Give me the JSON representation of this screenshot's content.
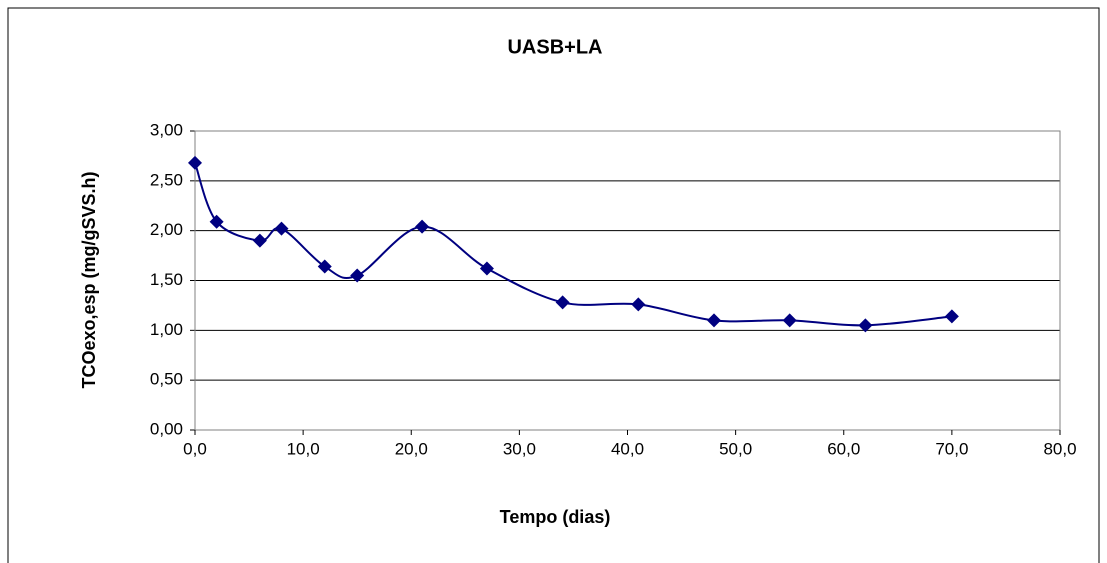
{
  "chart_data": {
    "type": "line",
    "title": "UASB+LA",
    "x_label": "Tempo (dias)",
    "y_label": "TCOexo,esp (mg/gSVS.h)",
    "x": [
      0,
      2,
      6,
      8,
      12,
      15,
      21,
      27,
      34,
      41,
      48,
      55,
      62,
      70
    ],
    "series": [
      {
        "name": "UASB+LA",
        "color": "#000080",
        "values": [
          2.68,
          2.09,
          1.9,
          2.02,
          1.64,
          1.55,
          2.04,
          1.62,
          1.28,
          1.26,
          1.1,
          1.1,
          1.05,
          1.14
        ]
      }
    ],
    "xlim": [
      0,
      80
    ],
    "xticks": [
      {
        "value": 0,
        "label": "0,0"
      },
      {
        "value": 10,
        "label": "10,0"
      },
      {
        "value": 20,
        "label": "20,0"
      },
      {
        "value": 30,
        "label": "30,0"
      },
      {
        "value": 40,
        "label": "40,0"
      },
      {
        "value": 50,
        "label": "50,0"
      },
      {
        "value": 60,
        "label": "60,0"
      },
      {
        "value": 70,
        "label": "70,0"
      },
      {
        "value": 80,
        "label": "80,0"
      }
    ],
    "ylim": [
      0,
      3
    ],
    "yticks": [
      {
        "value": 0,
        "label": "0,00"
      },
      {
        "value": 0.5,
        "label": "0,50"
      },
      {
        "value": 1,
        "label": "1,00"
      },
      {
        "value": 1.5,
        "label": "1,50"
      },
      {
        "value": 2,
        "label": "2,00"
      },
      {
        "value": 2.5,
        "label": "2,50"
      },
      {
        "value": 3,
        "label": "3,00"
      }
    ],
    "grid": true,
    "smooth": true
  }
}
